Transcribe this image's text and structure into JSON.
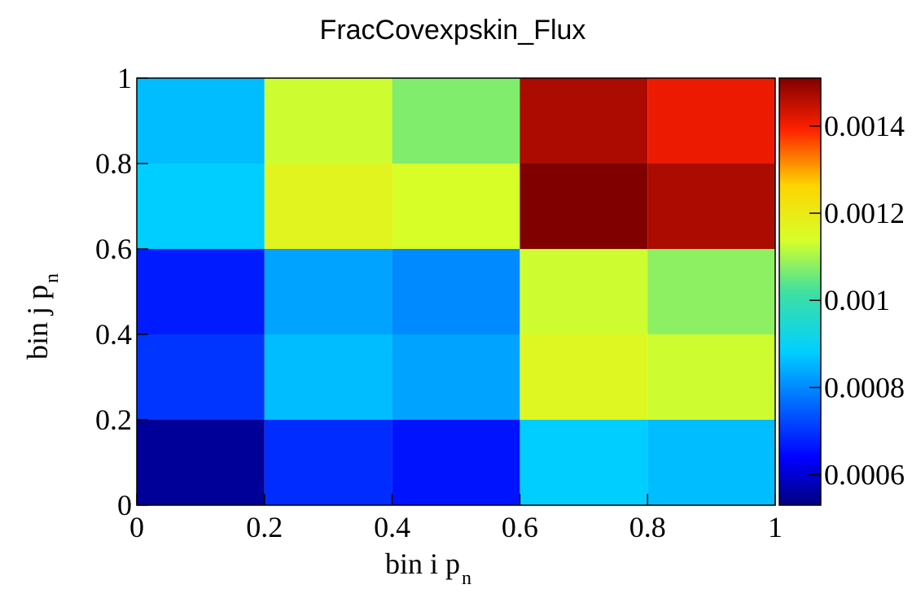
{
  "chart_data": {
    "type": "heatmap",
    "title": "FracCovexpskin_Flux",
    "xlabel": "bin i p",
    "xlabel_sub": "n",
    "ylabel": "bin j p",
    "ylabel_sub": "n",
    "x_edges": [
      0,
      0.2,
      0.4,
      0.6,
      0.8,
      1
    ],
    "y_edges": [
      0,
      0.2,
      0.4,
      0.6,
      0.8,
      1
    ],
    "xlim": [
      0,
      1
    ],
    "ylim": [
      0,
      1
    ],
    "x_ticks": [
      "0",
      "0.2",
      "0.4",
      "0.6",
      "0.8",
      "1"
    ],
    "y_ticks": [
      "0",
      "0.2",
      "0.4",
      "0.6",
      "0.8",
      "1"
    ],
    "values_rows_bottom_to_top": [
      [
        0.00055,
        0.00069,
        0.00066,
        0.00088,
        0.00086
      ],
      [
        0.0007,
        0.00086,
        0.00083,
        0.00116,
        0.00113
      ],
      [
        0.00067,
        0.00083,
        0.0008,
        0.00113,
        0.00108
      ],
      [
        0.00088,
        0.00117,
        0.00114,
        0.00151,
        0.00147
      ],
      [
        0.00086,
        0.00113,
        0.00107,
        0.00147,
        0.00141
      ]
    ],
    "colorbar": {
      "range": [
        0.00053,
        0.00151
      ],
      "ticks": [
        0.0006,
        0.0008,
        0.001,
        0.0012,
        0.0014
      ],
      "tick_labels": [
        "0.0006",
        "0.0008",
        "0.001",
        "0.0012",
        "0.0014"
      ]
    }
  }
}
